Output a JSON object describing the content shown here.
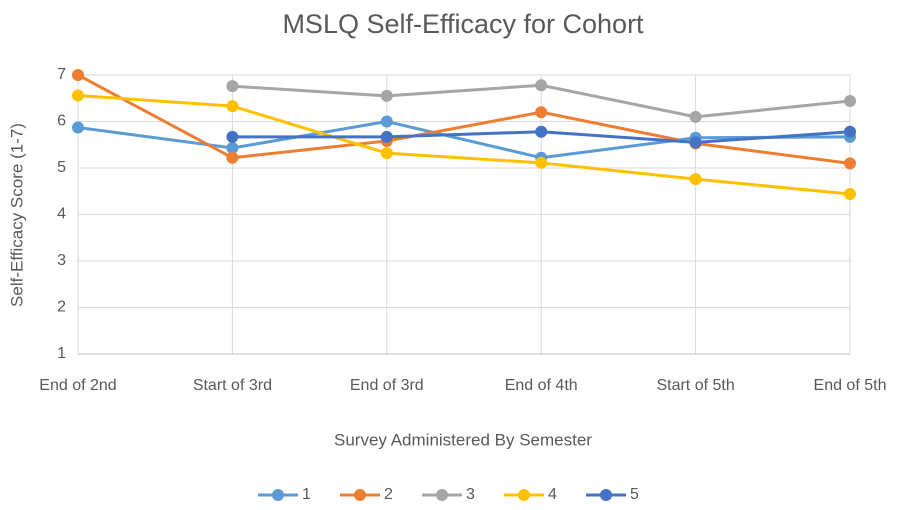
{
  "chart_data": {
    "type": "line",
    "title": "MSLQ Self-Efficacy for Cohort",
    "x_label": "Survey Administered By Semester",
    "y_label": "Self-Efficacy Score (1-7)",
    "categories": [
      "End of 2nd",
      "Start of 3rd",
      "End of 3rd",
      "End of 4th",
      "Start of 5th",
      "End of 5th"
    ],
    "series": [
      {
        "name": "1",
        "color": "#5B9BD5",
        "values": [
          5.87,
          5.43,
          6.0,
          5.22,
          5.65,
          5.67
        ]
      },
      {
        "name": "2",
        "color": "#ED7D31",
        "values": [
          7.0,
          5.22,
          5.58,
          6.2,
          5.53,
          5.1
        ]
      },
      {
        "name": "3",
        "color": "#A5A5A5",
        "values": [
          null,
          6.76,
          6.55,
          6.78,
          6.1,
          6.44
        ]
      },
      {
        "name": "4",
        "color": "#FFC000",
        "values": [
          6.56,
          6.33,
          5.32,
          5.11,
          4.76,
          4.44
        ]
      },
      {
        "name": "5",
        "color": "#4472C4",
        "values": [
          null,
          5.67,
          5.67,
          5.78,
          5.55,
          5.78
        ]
      }
    ],
    "ylim": [
      1,
      7
    ],
    "yticks": [
      1,
      2,
      3,
      4,
      5,
      6,
      7
    ],
    "grid": true,
    "legend": "bottom"
  }
}
